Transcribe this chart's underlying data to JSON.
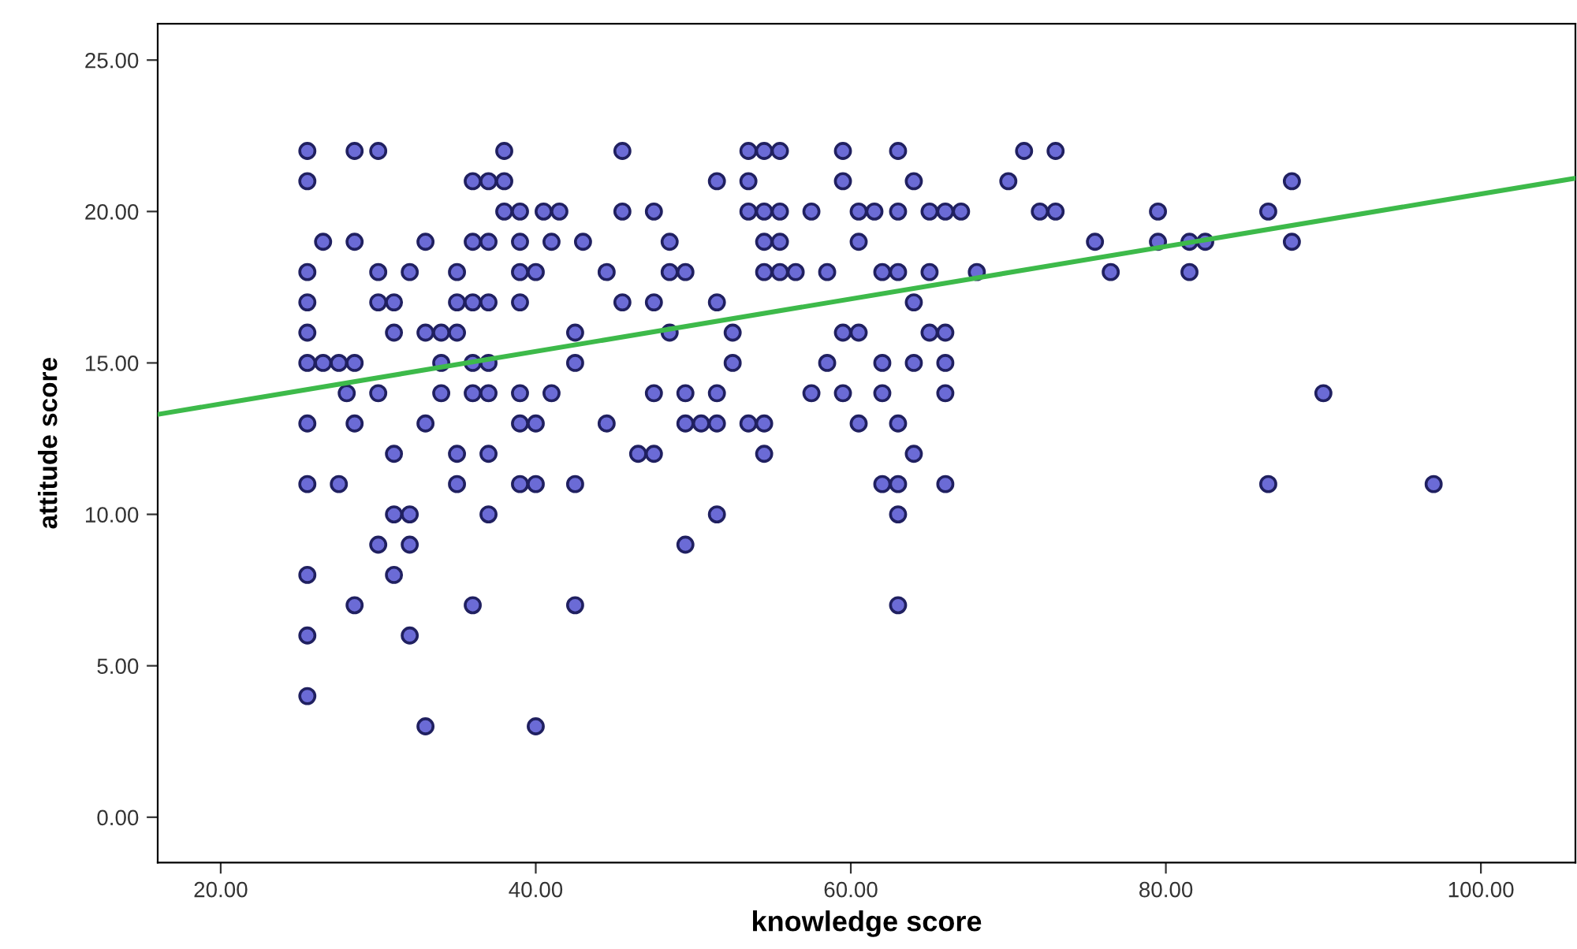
{
  "chart_data": {
    "type": "scatter",
    "xlabel": "knowledge score",
    "ylabel": "attitude score",
    "xlim": [
      16,
      106
    ],
    "ylim": [
      -1.5,
      26.2
    ],
    "xticks": [
      {
        "value": 20,
        "label": "20.00"
      },
      {
        "value": 40,
        "label": "40.00"
      },
      {
        "value": 60,
        "label": "60.00"
      },
      {
        "value": 80,
        "label": "80.00"
      },
      {
        "value": 100,
        "label": "100.00"
      }
    ],
    "yticks": [
      {
        "value": 0,
        "label": "0.00"
      },
      {
        "value": 5,
        "label": "5.00"
      },
      {
        "value": 10,
        "label": "10.00"
      },
      {
        "value": 15,
        "label": "15.00"
      },
      {
        "value": 20,
        "label": "20.00"
      },
      {
        "value": 25,
        "label": "25.00"
      }
    ],
    "grid": false,
    "series": [
      {
        "color": "#6b6bd6",
        "marker": "circle",
        "x": [
          25.5,
          28.5,
          30,
          38,
          45.5,
          53.5,
          54.5,
          55.5,
          59.5,
          63,
          71,
          73,
          25.5,
          36,
          37,
          38,
          51.5,
          53.5,
          59.5,
          64,
          70,
          88,
          38,
          39,
          40.5,
          41.5,
          45.5,
          47.5,
          53.5,
          54.5,
          55.5,
          57.5,
          60.5,
          61.5,
          63,
          65,
          66,
          67,
          72,
          73,
          79.5,
          86.5,
          26.5,
          28.5,
          33,
          36,
          37,
          39,
          41,
          43,
          48.5,
          54.5,
          55.5,
          60.5,
          75.5,
          79.5,
          81.5,
          82.5,
          88,
          25.5,
          30,
          32,
          35,
          39,
          40,
          44.5,
          48.5,
          49.5,
          54.5,
          55.5,
          56.5,
          58.5,
          62,
          63,
          65,
          68,
          76.5,
          81.5,
          25.5,
          30,
          31,
          35,
          36,
          37,
          39,
          45.5,
          47.5,
          51.5,
          64,
          25.5,
          31,
          33,
          34,
          35,
          42.5,
          48.5,
          52.5,
          59.5,
          60.5,
          65,
          66,
          25.5,
          26.5,
          27.5,
          28.5,
          34,
          36,
          37,
          42.5,
          52.5,
          58.5,
          62,
          64,
          66,
          28,
          30,
          34,
          36,
          37,
          39,
          41,
          47.5,
          49.5,
          51.5,
          57.5,
          59.5,
          62,
          66,
          90,
          25.5,
          28.5,
          33,
          39,
          40,
          44.5,
          49.5,
          50.5,
          51.5,
          53.5,
          54.5,
          60.5,
          63,
          31,
          35,
          37,
          46.5,
          47.5,
          54.5,
          64,
          25.5,
          27.5,
          35,
          39,
          40,
          42.5,
          62,
          63,
          66,
          86.5,
          97,
          31,
          32,
          37,
          51.5,
          63,
          30,
          32,
          49.5,
          25.5,
          31,
          28.5,
          36,
          42.5,
          63,
          25.5,
          32,
          25.5,
          33,
          40
        ],
        "values": [
          22,
          22,
          22,
          22,
          22,
          22,
          22,
          22,
          22,
          22,
          22,
          22,
          21,
          21,
          21,
          21,
          21,
          21,
          21,
          21,
          21,
          21,
          20,
          20,
          20,
          20,
          20,
          20,
          20,
          20,
          20,
          20,
          20,
          20,
          20,
          20,
          20,
          20,
          20,
          20,
          20,
          20,
          19,
          19,
          19,
          19,
          19,
          19,
          19,
          19,
          19,
          19,
          19,
          19,
          19,
          19,
          19,
          19,
          19,
          18,
          18,
          18,
          18,
          18,
          18,
          18,
          18,
          18,
          18,
          18,
          18,
          18,
          18,
          18,
          18,
          18,
          18,
          18,
          17,
          17,
          17,
          17,
          17,
          17,
          17,
          17,
          17,
          17,
          17,
          16,
          16,
          16,
          16,
          16,
          16,
          16,
          16,
          16,
          16,
          16,
          16,
          15,
          15,
          15,
          15,
          15,
          15,
          15,
          15,
          15,
          15,
          15,
          15,
          15,
          14,
          14,
          14,
          14,
          14,
          14,
          14,
          14,
          14,
          14,
          14,
          14,
          14,
          14,
          14,
          13,
          13,
          13,
          13,
          13,
          13,
          13,
          13,
          13,
          13,
          13,
          13,
          13,
          12,
          12,
          12,
          12,
          12,
          12,
          12,
          11,
          11,
          11,
          11,
          11,
          11,
          11,
          11,
          11,
          11,
          11,
          10,
          10,
          10,
          10,
          10,
          9,
          9,
          9,
          8,
          8,
          7,
          7,
          7,
          7,
          6,
          6,
          4,
          3,
          3
        ]
      },
      {
        "type": "line",
        "marker": "none",
        "color": "#3dba4a",
        "x": [
          16,
          106
        ],
        "values": [
          13.3,
          21.1
        ]
      }
    ]
  }
}
